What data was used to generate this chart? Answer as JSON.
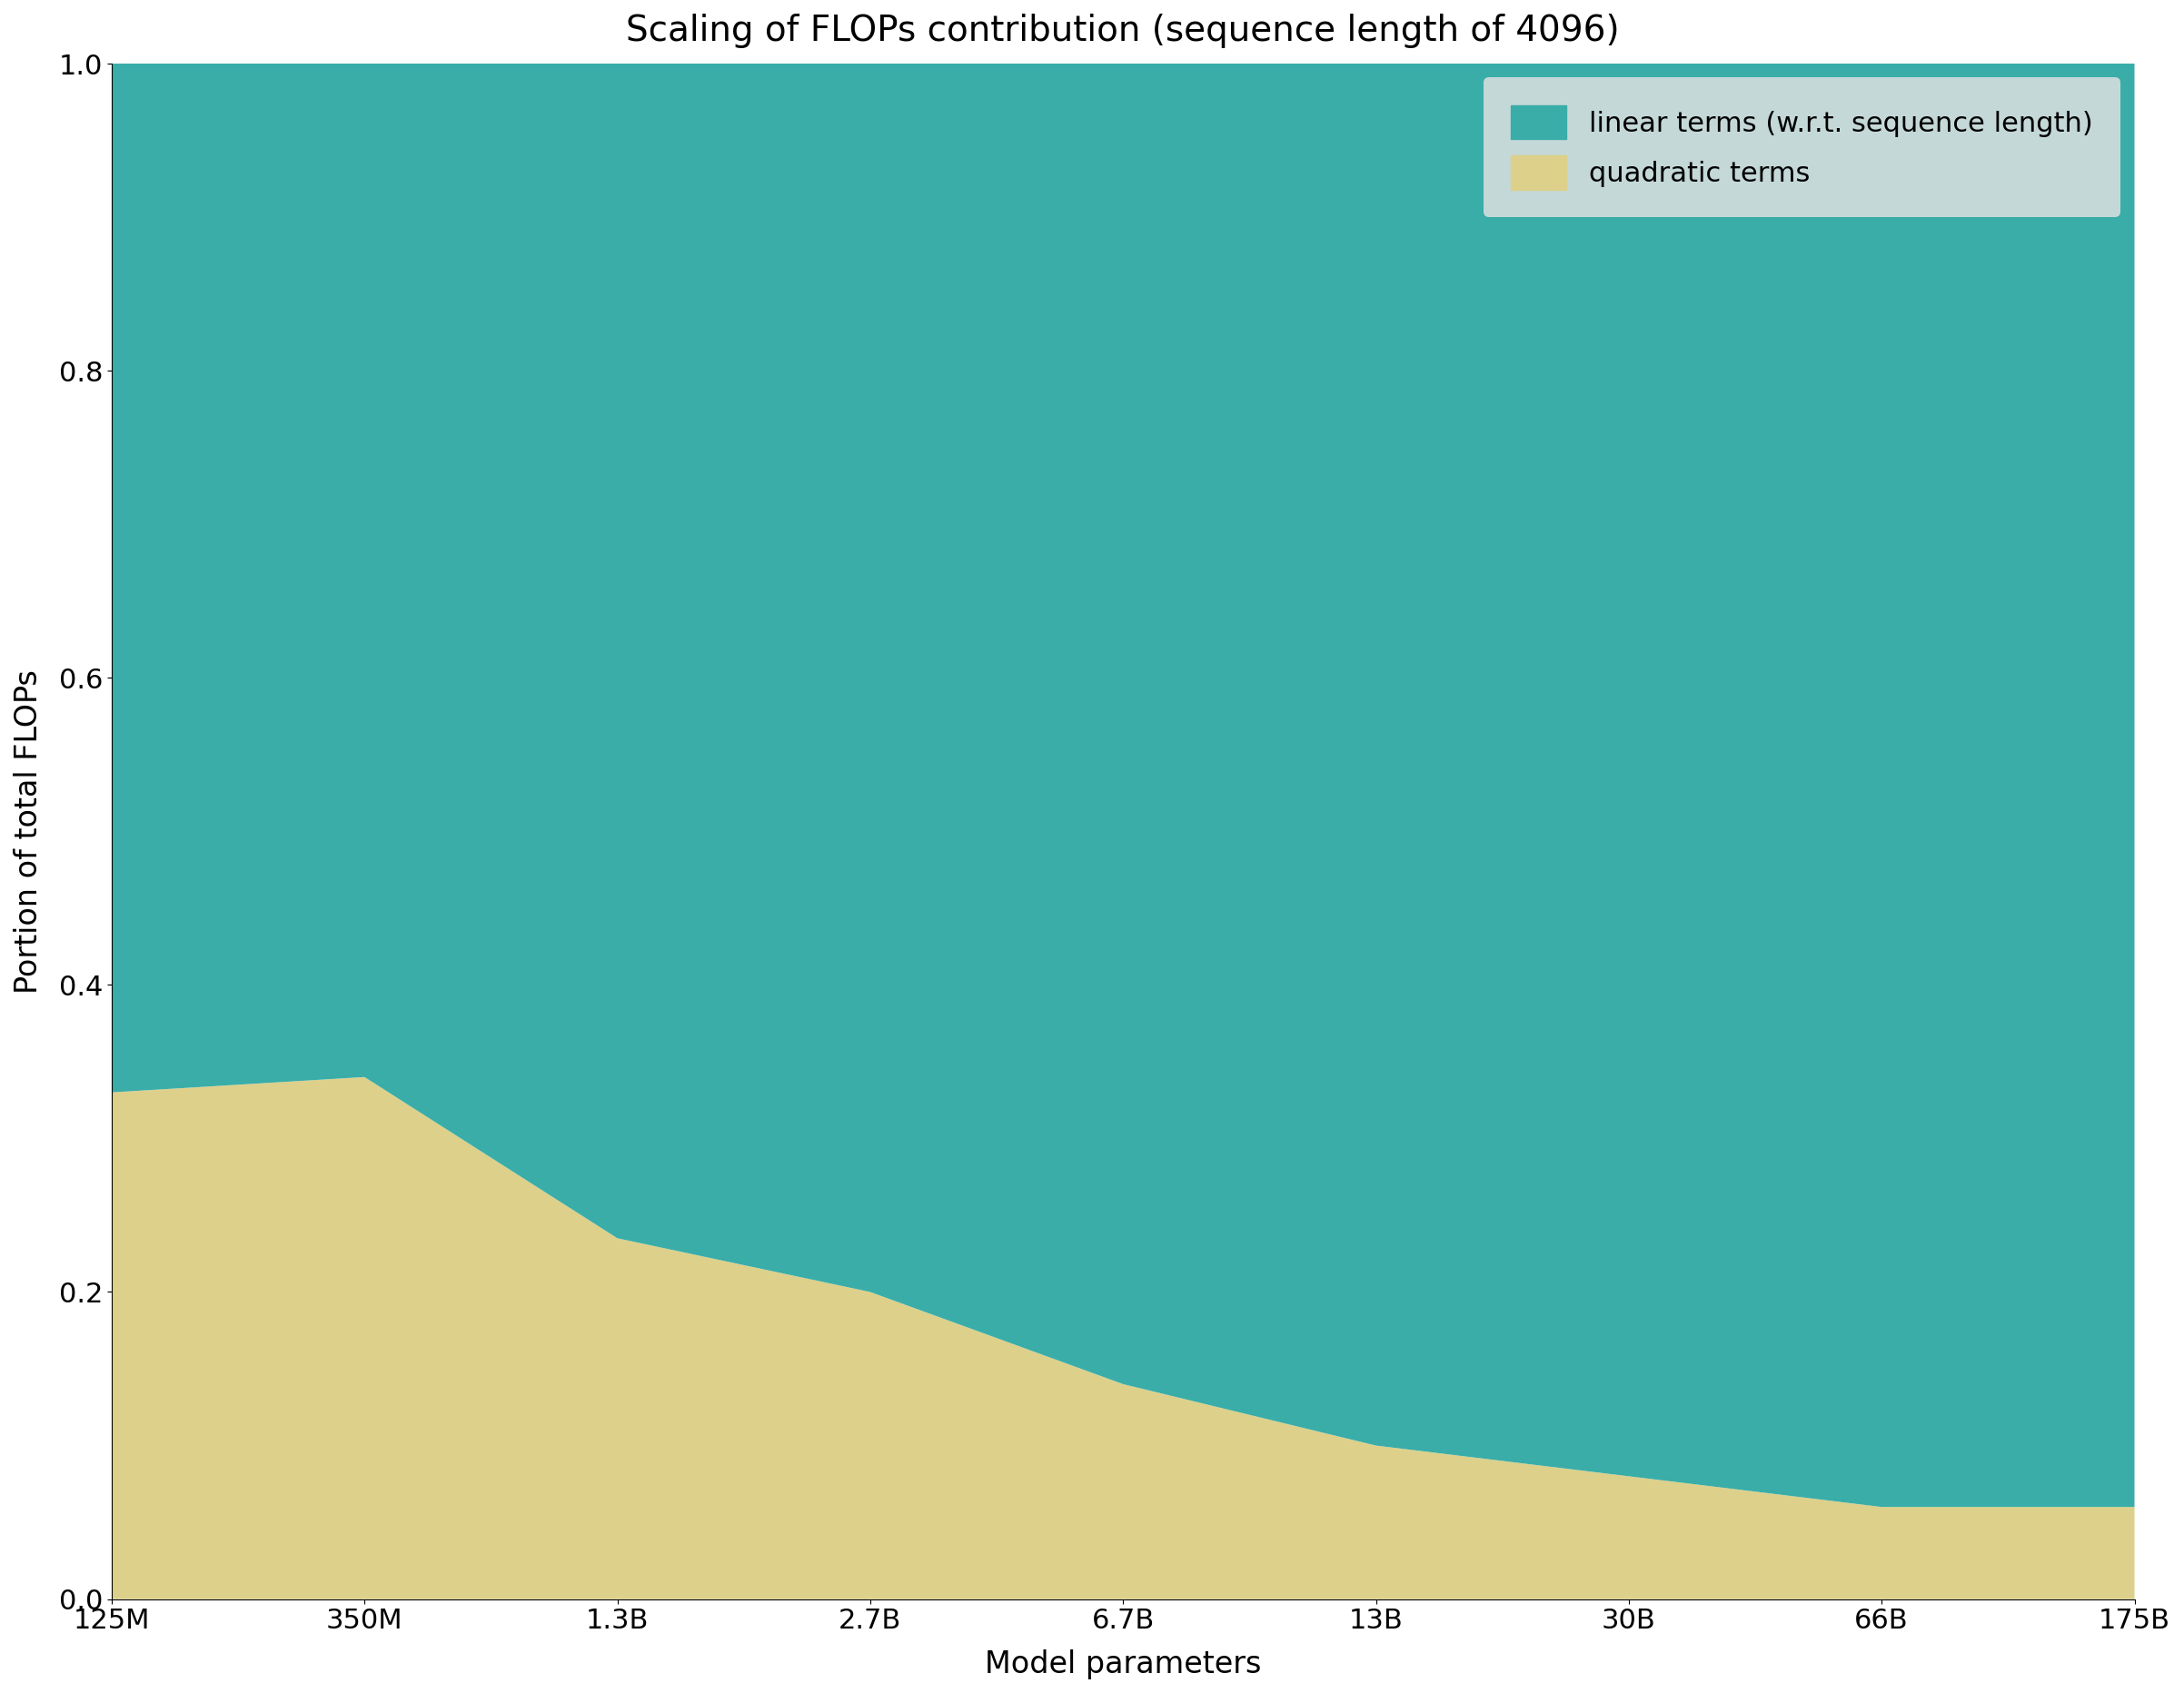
{
  "title": "Scaling of FLOPs contribution (sequence length of 4096)",
  "xlabel": "Model parameters",
  "ylabel": "Portion of total FLOPs",
  "categories": [
    "125M",
    "350M",
    "1.3B",
    "2.7B",
    "6.7B",
    "13B",
    "30B",
    "66B",
    "175B"
  ],
  "quadratic_values": [
    0.33,
    0.34,
    0.235,
    0.2,
    0.14,
    0.1,
    0.08,
    0.06,
    0.06
  ],
  "linear_values": [
    0.67,
    0.66,
    0.765,
    0.8,
    0.86,
    0.9,
    0.92,
    0.94,
    0.94
  ],
  "color_linear": "#3aada8",
  "color_quadratic": "#ddd08a",
  "legend_linear": "linear terms (w.r.t. sequence length)",
  "legend_quadratic": "quadratic terms",
  "legend_facecolor": "#c5d8d8",
  "background_color": "#ffffff",
  "ylim": [
    0.0,
    1.0
  ],
  "title_fontsize": 28,
  "label_fontsize": 24,
  "tick_fontsize": 22,
  "legend_fontsize": 22
}
